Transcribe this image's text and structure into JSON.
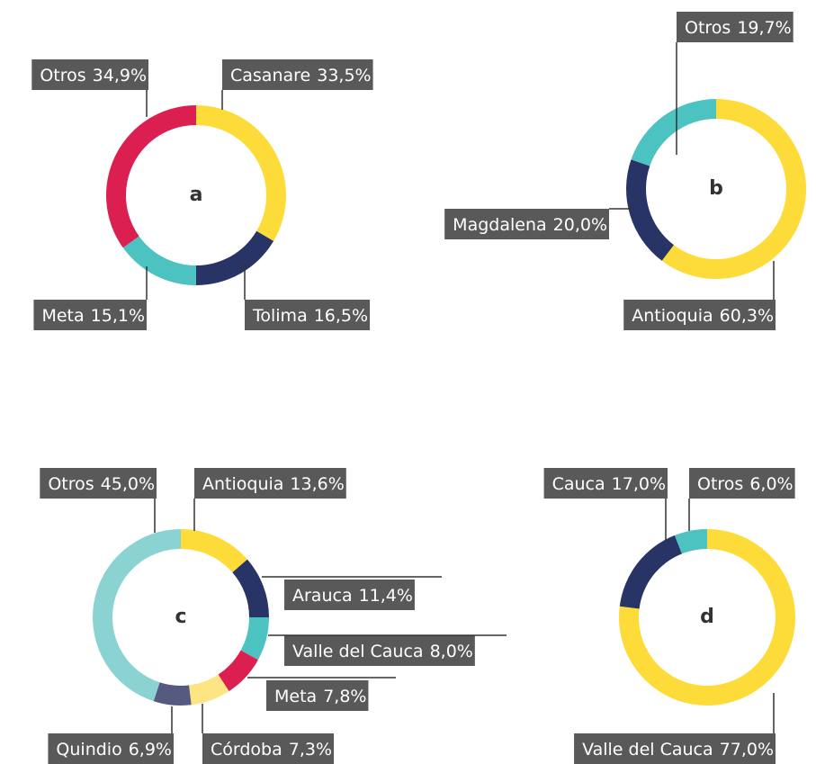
{
  "chart_data": [
    {
      "type": "pie",
      "title": "a",
      "categories": [
        "Casanare",
        "Tolima",
        "Meta",
        "Otros"
      ],
      "values": [
        33.5,
        16.5,
        15.1,
        34.9
      ],
      "value_labels": [
        "33,5%",
        "16,5%",
        "15,1%",
        "34,9%"
      ],
      "colors": [
        "#fddc3a",
        "#283466",
        "#4dc3c1",
        "#dc1f51"
      ]
    },
    {
      "type": "pie",
      "title": "b",
      "categories": [
        "Antioquia",
        "Magdalena",
        "Otros"
      ],
      "values": [
        60.3,
        20.0,
        19.7
      ],
      "value_labels": [
        "60,3%",
        "20,0%",
        "19,7%"
      ],
      "colors": [
        "#fddc3a",
        "#283466",
        "#4dc3c1"
      ]
    },
    {
      "type": "pie",
      "title": "c",
      "categories": [
        "Antioquia",
        "Arauca",
        "Valle del Cauca",
        "Meta",
        "Córdoba",
        "Quindio",
        "Otros"
      ],
      "values": [
        13.6,
        11.4,
        8.0,
        7.8,
        7.3,
        6.9,
        45.0
      ],
      "value_labels": [
        "13,6%",
        "11,4%",
        "8,0%",
        "7,8%",
        "7,3%",
        "6,9%",
        "45,0%"
      ],
      "colors": [
        "#fddc3a",
        "#283466",
        "#4dc3c1",
        "#dc1f51",
        "#fde583",
        "#575a80",
        "#8bd3d3"
      ]
    },
    {
      "type": "pie",
      "title": "d",
      "categories": [
        "Valle del Cauca",
        "Cauca",
        "Otros"
      ],
      "values": [
        77.0,
        17.0,
        6.0
      ],
      "value_labels": [
        "77,0%",
        "17,0%",
        "6,0%"
      ],
      "colors": [
        "#fddc3a",
        "#283466",
        "#4dc3c1"
      ]
    }
  ]
}
